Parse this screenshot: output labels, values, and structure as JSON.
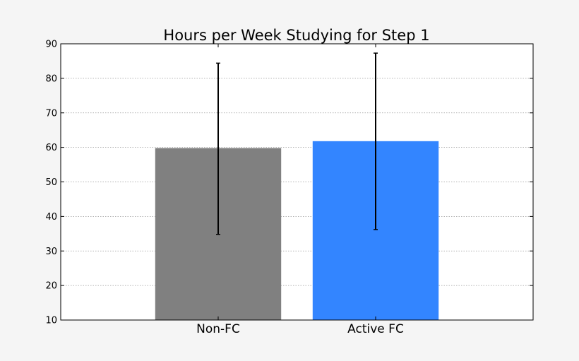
{
  "chart_data": {
    "type": "bar",
    "title": "Hours per Week Studying for Step 1",
    "xlabel": "",
    "ylabel": "",
    "categories": [
      "Non-FC",
      "Active FC"
    ],
    "values": [
      59.8,
      61.8
    ],
    "error_low": [
      34.8,
      36.2
    ],
    "error_high": [
      84.4,
      87.3
    ],
    "colors": [
      "#808080",
      "#3385ff"
    ],
    "ylim": [
      10,
      90
    ],
    "yticks": [
      10,
      20,
      30,
      40,
      50,
      60,
      70,
      80,
      90
    ],
    "grid": true,
    "legend": false
  }
}
